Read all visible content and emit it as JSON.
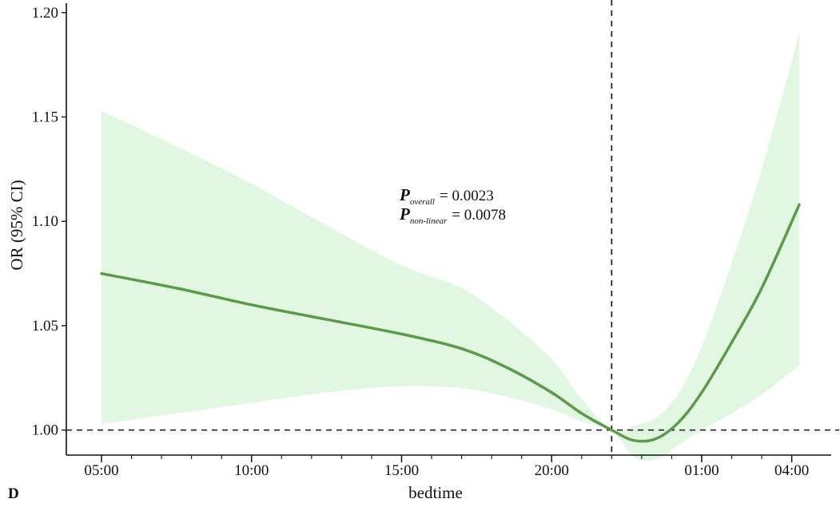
{
  "chart_data": {
    "type": "line",
    "title": "",
    "panel_label": "D",
    "xlabel": "bedtime",
    "ylabel": "OR (95% CI)",
    "ylim": [
      0.988,
      1.203
    ],
    "y_ticks": [
      1.0,
      1.05,
      1.1,
      1.15,
      1.2
    ],
    "y_tick_labels": [
      "1.00",
      "1.05",
      "1.10",
      "1.15",
      "1.20"
    ],
    "x_tick_labels": [
      "05:00",
      "10:00",
      "15:00",
      "20:00",
      "01:00",
      "04:00"
    ],
    "reference_y": 1.0,
    "reference_x_label": "22:00",
    "line_color": "#5a9a4a",
    "band_color": "#e2f7e2",
    "annotations": {
      "p_overall_label": "P",
      "p_overall_sub": "overall",
      "p_overall_value": "= 0.0023",
      "p_nonlinear_label": "P",
      "p_nonlinear_sub": "non-linear",
      "p_nonlinear_value": "= 0.0078"
    },
    "series": [
      {
        "points": [
          {
            "x": "05:00",
            "y": 1.075,
            "lower": 1.003,
            "upper": 1.153
          },
          {
            "x": "07:30",
            "y": 1.068,
            "lower": 1.008,
            "upper": 1.136
          },
          {
            "x": "10:00",
            "y": 1.06,
            "lower": 1.013,
            "upper": 1.118
          },
          {
            "x": "12:30",
            "y": 1.053,
            "lower": 1.018,
            "upper": 1.098
          },
          {
            "x": "15:00",
            "y": 1.046,
            "lower": 1.021,
            "upper": 1.079
          },
          {
            "x": "17:00",
            "y": 1.039,
            "lower": 1.02,
            "upper": 1.068
          },
          {
            "x": "18:30",
            "y": 1.03,
            "lower": 1.016,
            "upper": 1.053
          },
          {
            "x": "20:00",
            "y": 1.018,
            "lower": 1.01,
            "upper": 1.034
          },
          {
            "x": "21:00",
            "y": 1.008,
            "lower": 1.004,
            "upper": 1.015
          },
          {
            "x": "22:00",
            "y": 1.0,
            "lower": 1.0,
            "upper": 1.0
          },
          {
            "x": "22:45",
            "y": 0.995,
            "lower": 0.987,
            "upper": 1.002
          },
          {
            "x": "23:30",
            "y": 0.996,
            "lower": 0.986,
            "upper": 1.006
          },
          {
            "x": "00:15",
            "y": 1.004,
            "lower": 0.993,
            "upper": 1.018
          },
          {
            "x": "01:00",
            "y": 1.018,
            "lower": 1.0,
            "upper": 1.04
          },
          {
            "x": "02:00",
            "y": 1.042,
            "lower": 1.008,
            "upper": 1.08
          },
          {
            "x": "03:00",
            "y": 1.068,
            "lower": 1.017,
            "upper": 1.125
          },
          {
            "x": "04:15",
            "y": 1.108,
            "lower": 1.031,
            "upper": 1.19
          }
        ]
      }
    ]
  }
}
